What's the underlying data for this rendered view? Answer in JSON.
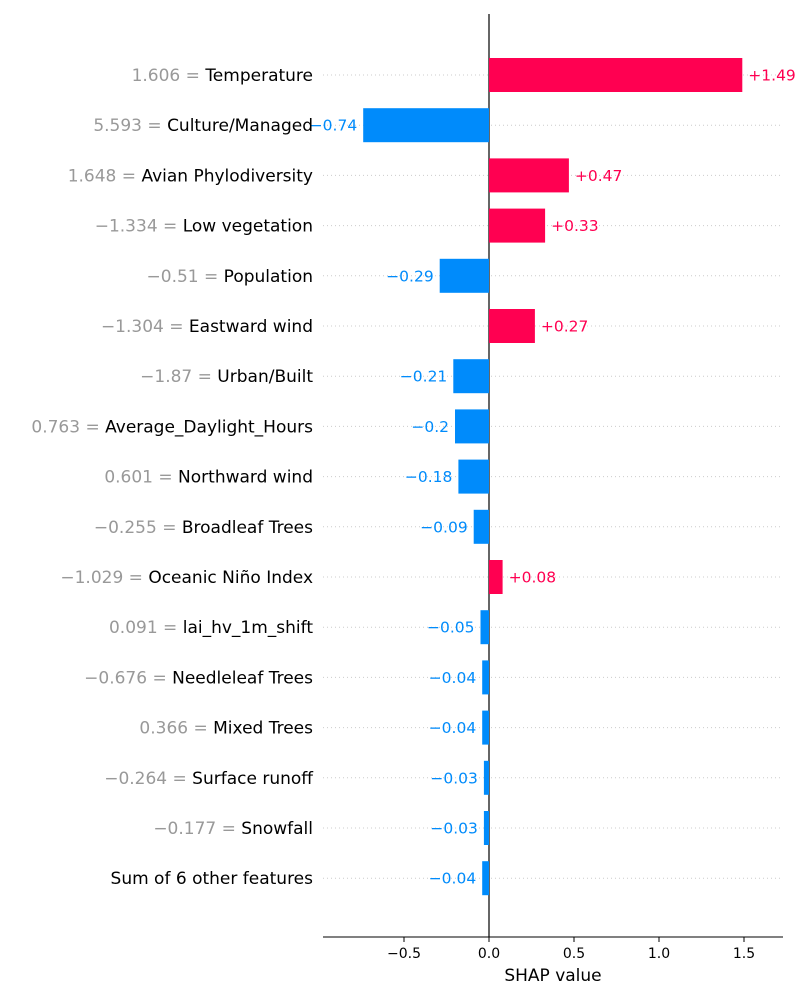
{
  "chart_data": {
    "type": "bar",
    "orientation": "horizontal",
    "xlabel": "SHAP value",
    "xlim": [
      -0.98,
      1.72
    ],
    "xticks": [
      -0.5,
      0.0,
      0.5,
      1.0,
      1.5
    ],
    "xtick_labels": [
      "−0.5",
      "0.0",
      "0.5",
      "1.0",
      "1.5"
    ],
    "grid": "dotted horizontal row lines",
    "colors": {
      "positive": "#ff0051",
      "negative": "#008bfb",
      "feature_value": "#999999",
      "feature_name": "#000000"
    },
    "rows": [
      {
        "feature_value": "1.606 = ",
        "feature": "Temperature",
        "value": 1.49,
        "label": "+1.49"
      },
      {
        "feature_value": "5.593 = ",
        "feature": "Culture/Managed",
        "value": -0.74,
        "label": "−0.74"
      },
      {
        "feature_value": "1.648 = ",
        "feature": "Avian Phylodiversity",
        "value": 0.47,
        "label": "+0.47"
      },
      {
        "feature_value": "−1.334 = ",
        "feature": "Low vegetation",
        "value": 0.33,
        "label": "+0.33"
      },
      {
        "feature_value": "−0.51 = ",
        "feature": "Population",
        "value": -0.29,
        "label": "−0.29"
      },
      {
        "feature_value": "−1.304 = ",
        "feature": "Eastward wind",
        "value": 0.27,
        "label": "+0.27"
      },
      {
        "feature_value": "−1.87 = ",
        "feature": "Urban/Built",
        "value": -0.21,
        "label": "−0.21"
      },
      {
        "feature_value": "0.763 = ",
        "feature": "Average_Daylight_Hours",
        "value": -0.2,
        "label": "−0.2"
      },
      {
        "feature_value": "0.601 = ",
        "feature": "Northward wind",
        "value": -0.18,
        "label": "−0.18"
      },
      {
        "feature_value": "−0.255 = ",
        "feature": "Broadleaf Trees",
        "value": -0.09,
        "label": "−0.09"
      },
      {
        "feature_value": "−1.029 = ",
        "feature": "Oceanic Niño Index",
        "value": 0.08,
        "label": "+0.08"
      },
      {
        "feature_value": "0.091 = ",
        "feature": "lai_hv_1m_shift",
        "value": -0.05,
        "label": "−0.05"
      },
      {
        "feature_value": "−0.676 = ",
        "feature": "Needleleaf Trees",
        "value": -0.04,
        "label": "−0.04"
      },
      {
        "feature_value": "0.366 = ",
        "feature": "Mixed Trees",
        "value": -0.04,
        "label": "−0.04"
      },
      {
        "feature_value": "−0.264 = ",
        "feature": "Surface runoff",
        "value": -0.03,
        "label": "−0.03"
      },
      {
        "feature_value": "−0.177 = ",
        "feature": "Snowfall",
        "value": -0.03,
        "label": "−0.03"
      },
      {
        "feature_value": "",
        "feature": "Sum of 6 other features",
        "value": -0.04,
        "label": "−0.04"
      }
    ]
  }
}
